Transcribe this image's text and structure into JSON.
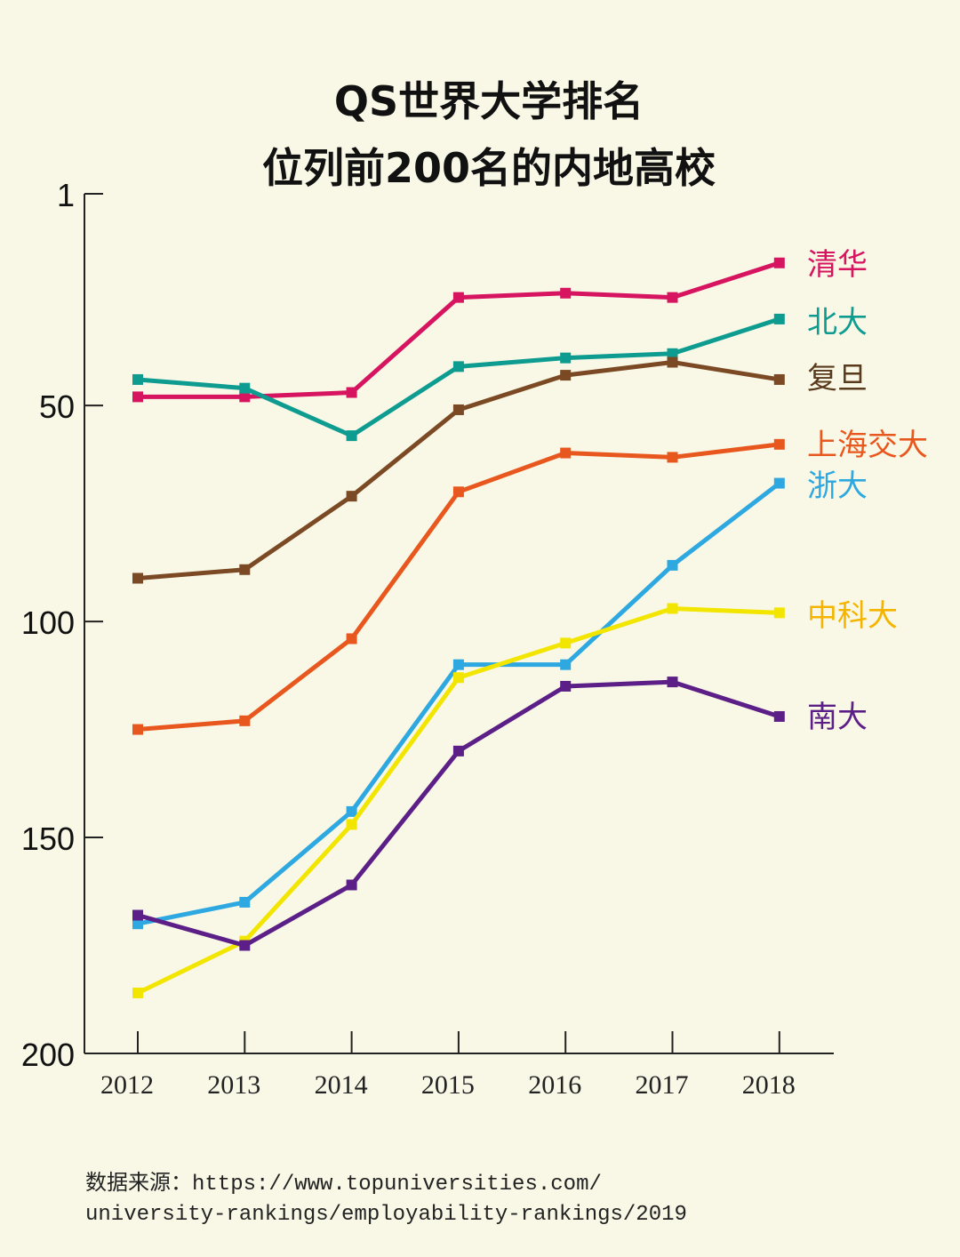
{
  "chart_data": {
    "type": "line",
    "title": [
      "QS世界大学排名",
      "位列前200名的内地高校"
    ],
    "xlabel": "",
    "ylabel": "",
    "x": [
      "2012",
      "2013",
      "2014",
      "2015",
      "2016",
      "2017",
      "2018"
    ],
    "yticks": [
      "1",
      "50",
      "100",
      "150",
      "200"
    ],
    "ytick_values": [
      1,
      50,
      100,
      150,
      200
    ],
    "ylim": [
      1,
      200
    ],
    "y_inverted": true,
    "grid": false,
    "series": [
      {
        "name": "清华",
        "color": "#d6145f",
        "label_color": "#d6145f",
        "values": [
          48,
          48,
          47,
          25,
          24,
          25,
          17
        ]
      },
      {
        "name": "北大",
        "color": "#0e9c91",
        "label_color": "#0e9c91",
        "values": [
          44,
          46,
          57,
          41,
          39,
          38,
          30
        ]
      },
      {
        "name": "复旦",
        "color": "#7b4a24",
        "label_color": "#5a3a1c",
        "values": [
          90,
          88,
          71,
          51,
          43,
          40,
          44
        ]
      },
      {
        "name": "上海交大",
        "color": "#e8571e",
        "label_color": "#e8571e",
        "values": [
          125,
          123,
          104,
          70,
          61,
          62,
          59
        ]
      },
      {
        "name": "浙大",
        "color": "#2ea8e0",
        "label_color": "#2ea8e0",
        "values": [
          170,
          165,
          144,
          110,
          110,
          87,
          68
        ]
      },
      {
        "name": "中科大",
        "color": "#f2e500",
        "label_color": "#f5b400",
        "values": [
          186,
          174,
          147,
          113,
          105,
          97,
          98
        ]
      },
      {
        "name": "南大",
        "color": "#5c1f87",
        "label_color": "#5c1f87",
        "values": [
          168,
          175,
          161,
          130,
          115,
          114,
          122
        ]
      }
    ]
  },
  "source": {
    "line1": "数据来源：https://www.topuniversities.com/",
    "line2": "university-rankings/employability-rankings/2019"
  }
}
